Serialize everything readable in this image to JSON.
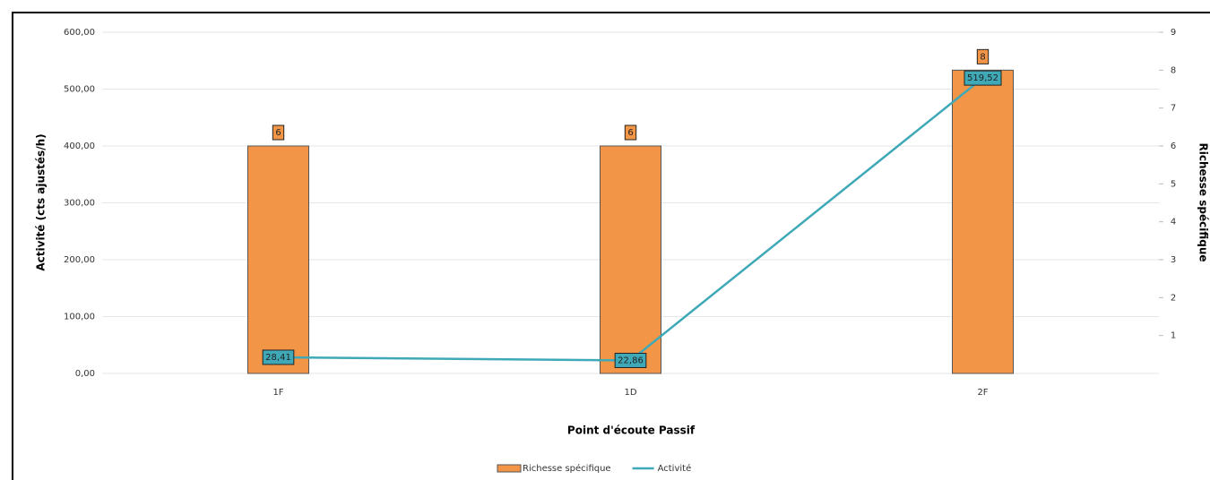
{
  "chart_data": {
    "type": "combo",
    "x_label": "Point d'écoute Passif",
    "y_label": "Activité (cts ajustés/h)",
    "y2_label": "Richesse spécifique",
    "categories": [
      "1F",
      "1D",
      "2F"
    ],
    "series": [
      {
        "name": "Richesse spécifique",
        "type": "bar",
        "axis": "y2",
        "color": "#f39547",
        "values": [
          6,
          6,
          8
        ]
      },
      {
        "name": "Activité",
        "type": "line",
        "axis": "y",
        "color": "#3fa9b8",
        "values": [
          28.41,
          22.86,
          519.52
        ],
        "value_labels": [
          "28,41",
          "22,86",
          "519,52"
        ]
      }
    ],
    "ylim": [
      0,
      600
    ],
    "yticks": [
      {
        "value": 0,
        "label": "0,00"
      },
      {
        "value": 100,
        "label": "100,00"
      },
      {
        "value": 200,
        "label": "200,00"
      },
      {
        "value": 300,
        "label": "300,00"
      },
      {
        "value": 400,
        "label": "400,00"
      },
      {
        "value": 500,
        "label": "500,00"
      },
      {
        "value": 600,
        "label": "600,00"
      }
    ],
    "y2lim": [
      0,
      9
    ],
    "y2ticks": [
      1,
      2,
      3,
      4,
      5,
      6,
      7,
      8,
      9
    ],
    "grid": true,
    "legend": "bottom"
  }
}
